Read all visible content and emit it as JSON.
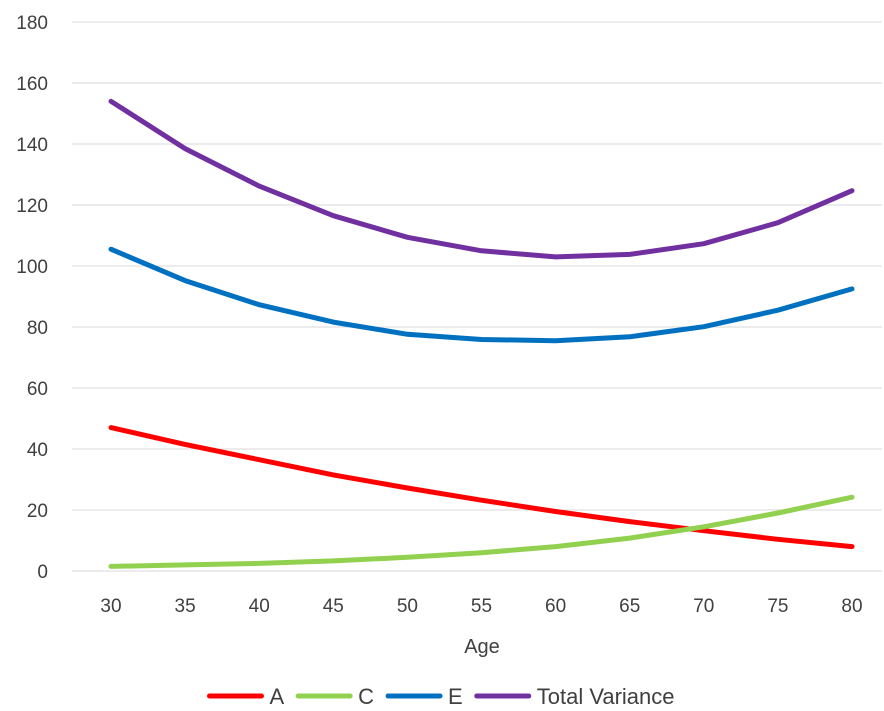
{
  "chart_data": {
    "type": "line",
    "title": "",
    "xlabel": "Age",
    "ylabel": "",
    "x": [
      30,
      35,
      40,
      45,
      50,
      55,
      60,
      65,
      70,
      75,
      80
    ],
    "ylim": [
      0,
      180
    ],
    "y_ticks": [
      0,
      20,
      40,
      60,
      80,
      100,
      120,
      140,
      160,
      180
    ],
    "grid": true,
    "legend_position": "bottom",
    "series": [
      {
        "name": "A",
        "color": "#ff0000",
        "values": [
          47,
          41.5,
          36.5,
          31.5,
          27.2,
          23.2,
          19.5,
          16.2,
          13.2,
          10.4,
          8
        ]
      },
      {
        "name": "C",
        "color": "#92d050",
        "values": [
          1.5,
          2,
          2.5,
          3.3,
          4.5,
          6,
          8,
          10.8,
          14.5,
          19,
          24.2
        ]
      },
      {
        "name": "E",
        "color": "#0070c0",
        "values": [
          105.5,
          95.2,
          87.3,
          81.6,
          77.6,
          75.9,
          75.5,
          76.8,
          80.1,
          85.5,
          92.5
        ]
      },
      {
        "name": "Total Variance",
        "color": "#7030a0",
        "values": [
          154,
          138.5,
          126.2,
          116.5,
          109.4,
          105,
          103,
          103.8,
          107.3,
          114.2,
          124.7
        ]
      }
    ]
  }
}
